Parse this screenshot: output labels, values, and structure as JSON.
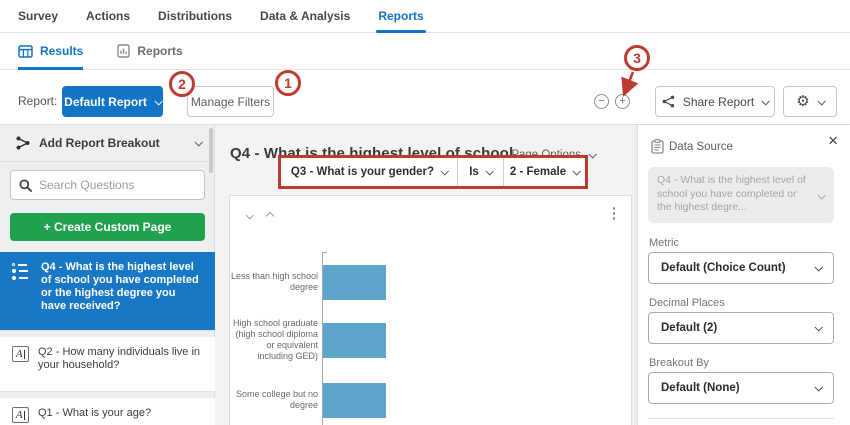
{
  "colors": {
    "accent_blue": "#1274C5",
    "sidebar_selected_blue": "#1878C6",
    "create_green": "#1FA14E",
    "bar_blue": "#5EA4CB",
    "annotation_red": "#BF3B31"
  },
  "top_nav": {
    "items": [
      {
        "label": "Survey"
      },
      {
        "label": "Actions"
      },
      {
        "label": "Distributions"
      },
      {
        "label": "Data & Analysis"
      },
      {
        "label": "Reports",
        "active": true
      }
    ]
  },
  "tab_bar": {
    "tabs": [
      {
        "label": "Results",
        "icon": "results-grid-icon",
        "active": true
      },
      {
        "label": "Reports",
        "icon": "report-doc-icon",
        "active": false
      }
    ]
  },
  "toolbar": {
    "report_label": "Report:",
    "report_button_label": "Default Report",
    "manage_filters_label": "Manage Filters",
    "filter": {
      "field": "Q3 - What is your gender?",
      "operator": "Is",
      "value": "2 - Female"
    },
    "remove_filter_icon": "minus-circle-icon",
    "add_filter_icon": "plus-circle-icon",
    "share_button_label": "Share Report",
    "settings_icon": "gear-icon"
  },
  "annotations": {
    "steps": [
      {
        "number": "1"
      },
      {
        "number": "2"
      },
      {
        "number": "3"
      }
    ]
  },
  "sidebar": {
    "breakout_label": "Add Report Breakout",
    "breakout_icon": "breakout-share-icon",
    "search_placeholder": "Search Questions",
    "search_icon": "search-icon",
    "create_button_label": "+ Create Custom Page",
    "items": [
      {
        "icon": "multiple-choice-icon",
        "label": "Q4 - What is the highest level of school you have completed or the highest degree you have received?",
        "selected": true
      },
      {
        "icon": "text-entry-icon",
        "label": "Q2 - How many individuals live in your household?",
        "selected": false
      },
      {
        "icon": "text-entry-icon",
        "label": "Q1 - What is your age?",
        "selected": false
      }
    ]
  },
  "main": {
    "page_title": "Q4 - What is the highest level of school...",
    "page_options_label": "Page Options",
    "card_icons": [
      "chevron-down-icon",
      "chevron-up-icon",
      "kebab-menu-icon"
    ]
  },
  "chart_data": {
    "type": "bar",
    "orientation": "horizontal",
    "categories": [
      "Less than high school degree",
      "High school graduate (high school diploma or equivalent including GED)",
      "Some college but no degree"
    ],
    "values": [
      1,
      1,
      1
    ],
    "bar_color": "#5EA4CB",
    "value_labels_shown": false,
    "axis_labels_shown": false,
    "note_values": "bars rendered equal length; numeric axis not visible in screenshot",
    "xlabel": "",
    "ylabel": ""
  },
  "panel": {
    "title": "Data Source",
    "title_icon": "clipboard-icon",
    "close_icon": "close-icon",
    "source_value": "Q4 - What is the highest level of school you have completed or the highest degre...",
    "fields": [
      {
        "label": "Metric",
        "value": "Default (Choice Count)"
      },
      {
        "label": "Decimal Places",
        "value": "Default (2)"
      },
      {
        "label": "Breakout By",
        "value": "Default (None)"
      }
    ]
  }
}
